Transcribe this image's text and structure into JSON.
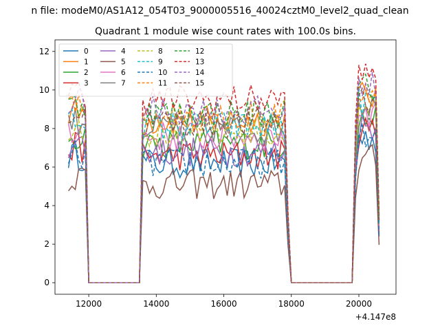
{
  "figure": {
    "suptitle": "n file: modeM0/AS1A12_054T03_9000005516_40024cztM0_level2_quad_clean"
  },
  "chart_data": {
    "type": "line",
    "title": "Quadrant 1 module wise count rates with 100.0s bins.",
    "xlabel": "",
    "ylabel": "",
    "x_offset_label": "+4.147e8",
    "xlim": [
      11000,
      21100
    ],
    "ylim": [
      -0.6,
      12.6
    ],
    "xticks": [
      12000,
      14000,
      16000,
      18000,
      20000
    ],
    "xtick_labels": [
      "12000",
      "14000",
      "16000",
      "18000",
      "20000"
    ],
    "yticks": [
      0,
      2,
      4,
      6,
      8,
      10,
      12
    ],
    "ytick_labels": [
      "0",
      "2",
      "4",
      "6",
      "8",
      "10",
      "12"
    ],
    "grid": false,
    "legend": {
      "placement": "top-left",
      "columns": 4
    },
    "segments": [
      {
        "x_start": 11400,
        "x_end": 11900,
        "active": true
      },
      {
        "x_start": 12000,
        "x_end": 13500,
        "active": false
      },
      {
        "x_start": 13600,
        "x_end": 17900,
        "active": true
      },
      {
        "x_start": 18000,
        "x_end": 19800,
        "active": false
      },
      {
        "x_start": 19900,
        "x_end": 20600,
        "active": true
      }
    ],
    "series": [
      {
        "name": "0",
        "color": "#1f77b4",
        "dash": "solid",
        "level": 6.0
      },
      {
        "name": "1",
        "color": "#ff7f0e",
        "dash": "solid",
        "level": 8.2
      },
      {
        "name": "2",
        "color": "#2ca02c",
        "dash": "solid",
        "level": 7.0
      },
      {
        "name": "3",
        "color": "#d62728",
        "dash": "solid",
        "level": 6.4
      },
      {
        "name": "4",
        "color": "#9467bd",
        "dash": "solid",
        "level": 6.6
      },
      {
        "name": "5",
        "color": "#8c564b",
        "dash": "solid",
        "level": 4.9
      },
      {
        "name": "6",
        "color": "#e377c2",
        "dash": "solid",
        "level": 7.4
      },
      {
        "name": "7",
        "color": "#7f7f7f",
        "dash": "solid",
        "level": 7.8
      },
      {
        "name": "8",
        "color": "#bcbd22",
        "dash": "dashed",
        "level": 7.6
      },
      {
        "name": "9",
        "color": "#17becf",
        "dash": "dashed",
        "level": 7.9
      },
      {
        "name": "10",
        "color": "#1f77b4",
        "dash": "dashed",
        "level": 6.0
      },
      {
        "name": "11",
        "color": "#ff7f0e",
        "dash": "dashed",
        "level": 8.5
      },
      {
        "name": "12",
        "color": "#2ca02c",
        "dash": "dashed",
        "level": 8.6
      },
      {
        "name": "13",
        "color": "#d62728",
        "dash": "dashed",
        "level": 9.3
      },
      {
        "name": "14",
        "color": "#9467bd",
        "dash": "dashed",
        "level": 8.7
      },
      {
        "name": "15",
        "color": "#8c564b",
        "dash": "dashed",
        "level": 8.1
      }
    ]
  }
}
